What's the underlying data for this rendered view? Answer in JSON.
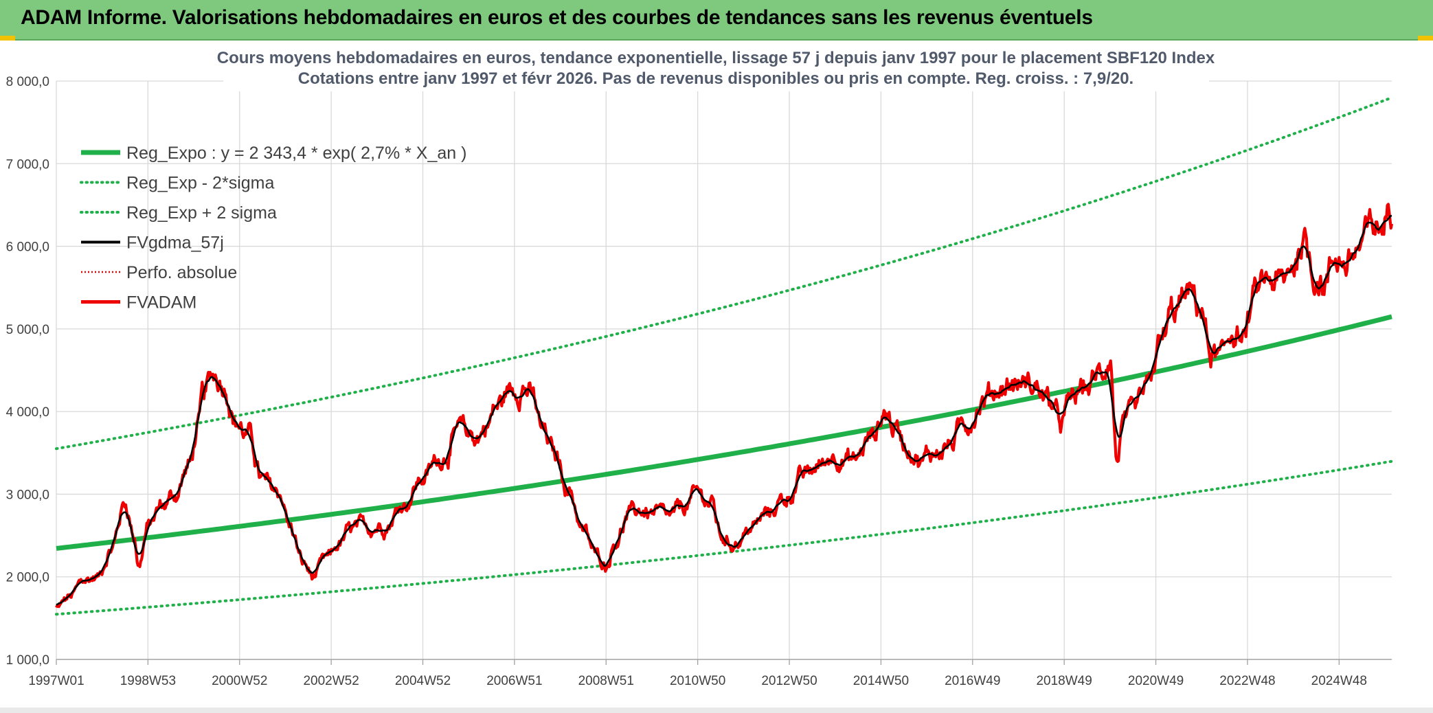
{
  "banner": {
    "title": "ADAM Informe. Valorisations hebdomadaires en euros et des courbes de tendances sans les revenus éventuels",
    "color": "#7fc97f"
  },
  "chart_data": {
    "type": "line",
    "title": "Cours moyens hebdomadaires en euros, tendance exponentielle, lissage 57 j depuis janv 1997 pour le placement SBF120 Index",
    "subtitle": "Cotations entre janv 1997 et févr 2026. Pas de revenus disponibles ou pris en compte. Reg. croiss. : 7,9/20.",
    "xlabel": "",
    "ylabel": "",
    "xlim": [
      1997.0,
      2026.15
    ],
    "ylim": [
      1000,
      8000
    ],
    "grid": true,
    "legend_position": "top-left",
    "y_ticks": [
      "1 000,0",
      "2 000,0",
      "3 000,0",
      "4 000,0",
      "5 000,0",
      "6 000,0",
      "7 000,0",
      "8 000,0"
    ],
    "y_tick_values": [
      1000,
      2000,
      3000,
      4000,
      5000,
      6000,
      7000,
      8000
    ],
    "x_ticks": [
      "1997W01",
      "1998W53",
      "2000W52",
      "2002W52",
      "2004W52",
      "2006W51",
      "2008W51",
      "2010W50",
      "2012W50",
      "2014W50",
      "2016W49",
      "2018W49",
      "2020W49",
      "2022W48",
      "2024W48"
    ],
    "x_tick_values": [
      1997.0,
      1999.0,
      2001.0,
      2003.0,
      2005.0,
      2007.0,
      2009.0,
      2011.0,
      2013.0,
      2015.0,
      2017.0,
      2019.0,
      2021.0,
      2023.0,
      2025.0
    ],
    "regression": {
      "label": "Reg_Expo : y = 2 343,4 * exp( 2,7% *  X_an )",
      "a": 2343.4,
      "rate": 0.027,
      "t0": 1997.0,
      "lower_factor": 0.66,
      "upper_factor": 1.515
    },
    "series": [
      {
        "name": "Reg_Expo : y = 2 343,4 * exp( 2,7% *  X_an )",
        "role": "trend",
        "color": "#1fb04a",
        "style": "solid"
      },
      {
        "name": "Reg_Exp - 2*sigma",
        "role": "lower",
        "color": "#1fb04a",
        "style": "dotted"
      },
      {
        "name": "Reg_Exp + 2 sigma",
        "role": "upper",
        "color": "#1fb04a",
        "style": "dotted"
      },
      {
        "name": "FVgdma_57j",
        "role": "smooth",
        "color": "#000000",
        "style": "solid"
      },
      {
        "name": "Perfo. absolue",
        "role": "perf",
        "color": "#e00000",
        "style": "dotted"
      },
      {
        "name": "FVADAM",
        "role": "price",
        "color": "#ee0000",
        "style": "solid"
      }
    ],
    "price_points": {
      "x": [
        1997.0,
        1997.3,
        1997.6,
        1997.9,
        1998.2,
        1998.5,
        1998.7,
        1998.8,
        1999.0,
        1999.3,
        1999.6,
        1999.9,
        2000.1,
        2000.2,
        2000.45,
        2000.7,
        2000.9,
        2001.2,
        2001.5,
        2001.7,
        2001.9,
        2002.1,
        2002.4,
        2002.6,
        2002.9,
        2003.2,
        2003.4,
        2003.8,
        2004.2,
        2004.6,
        2005.0,
        2005.4,
        2005.8,
        2006.2,
        2006.4,
        2006.6,
        2006.9,
        2007.2,
        2007.4,
        2007.6,
        2007.9,
        2008.2,
        2008.5,
        2008.8,
        2009.0,
        2009.2,
        2009.5,
        2009.8,
        2010.1,
        2010.4,
        2010.7,
        2011.0,
        2011.3,
        2011.5,
        2011.7,
        2011.9,
        2012.2,
        2012.5,
        2012.9,
        2013.3,
        2013.7,
        2014.0,
        2014.4,
        2014.8,
        2015.1,
        2015.3,
        2015.6,
        2015.9,
        2016.1,
        2016.5,
        2016.9,
        2017.2,
        2017.6,
        2018.0,
        2018.4,
        2018.7,
        2018.9,
        2019.2,
        2019.5,
        2019.8,
        2020.0,
        2020.15,
        2020.25,
        2020.5,
        2020.8,
        2021.1,
        2021.4,
        2021.7,
        2021.95,
        2022.2,
        2022.45,
        2022.7,
        2022.9,
        2023.2,
        2023.5,
        2023.8,
        2024.0,
        2024.2,
        2024.45,
        2024.7,
        2024.95,
        2025.2,
        2025.4,
        2025.6,
        2025.8,
        2026.0,
        2026.1
      ],
      "y": [
        1620,
        1750,
        1950,
        2000,
        2350,
        2900,
        2500,
        2150,
        2600,
        2850,
        3000,
        3350,
        3800,
        4150,
        4450,
        4350,
        3900,
        3700,
        3150,
        3050,
        3000,
        2600,
        2150,
        2000,
        2200,
        2400,
        2550,
        2600,
        2650,
        2900,
        3200,
        3450,
        3750,
        3700,
        3850,
        4050,
        4250,
        4350,
        4150,
        3750,
        3450,
        3050,
        2550,
        2250,
        2150,
        2450,
        2750,
        2800,
        2750,
        2700,
        2850,
        3000,
        2900,
        2500,
        2400,
        2450,
        2600,
        2750,
        2950,
        3200,
        3350,
        3500,
        3400,
        3700,
        4000,
        3800,
        3600,
        3400,
        3500,
        3600,
        3900,
        4150,
        4300,
        4350,
        4300,
        4100,
        3850,
        4150,
        4300,
        4450,
        4700,
        3400,
        3800,
        3900,
        4200,
        4800,
        5200,
        5400,
        5300,
        4700,
        4600,
        5000,
        4900,
        5400,
        5600,
        5500,
        5800,
        6100,
        5700,
        5600,
        5900,
        5800,
        5950,
        6100,
        6200,
        6250,
        6500
      ]
    }
  }
}
